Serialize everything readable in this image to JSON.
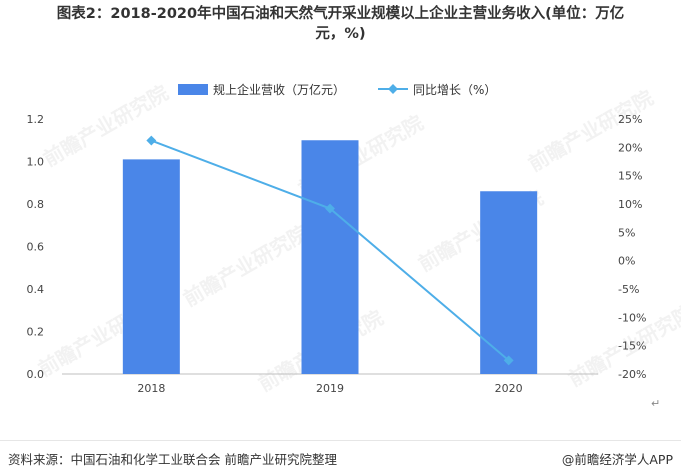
{
  "title_line1": "图表2：2018-2020年中国石油和天然气开采业规模以上企业主营业务收入(单位：万亿",
  "title_line2": "元，%)",
  "source": "资料来源：中国石油和化学工业联合会 前瞻产业研究院整理",
  "credit": "@前瞻经济学人APP",
  "watermark": "前瞻产业研究院",
  "return_mark": "↵",
  "chart_data": {
    "type": "bar",
    "categories": [
      "2018",
      "2019",
      "2020"
    ],
    "series": [
      {
        "name": "规上企业营收（万亿元）",
        "type": "bar",
        "axis": "left",
        "color": "#4a86e8",
        "values": [
          1.01,
          1.1,
          0.86
        ]
      },
      {
        "name": "同比增长（%）",
        "type": "line",
        "axis": "right",
        "color": "#4eaee8",
        "values": [
          21.2,
          9.2,
          -17.6
        ]
      }
    ],
    "y_left": {
      "min": 0,
      "max": 1.2,
      "ticks": [
        "0.0",
        "0.2",
        "0.4",
        "0.6",
        "0.8",
        "1.0",
        "1.2"
      ]
    },
    "y_right": {
      "min": -20,
      "max": 25,
      "ticks": [
        "-20%",
        "-15%",
        "-10%",
        "-5%",
        "0%",
        "5%",
        "10%",
        "15%",
        "20%",
        "25%"
      ]
    },
    "grid": false,
    "legend_position": "top-center"
  }
}
